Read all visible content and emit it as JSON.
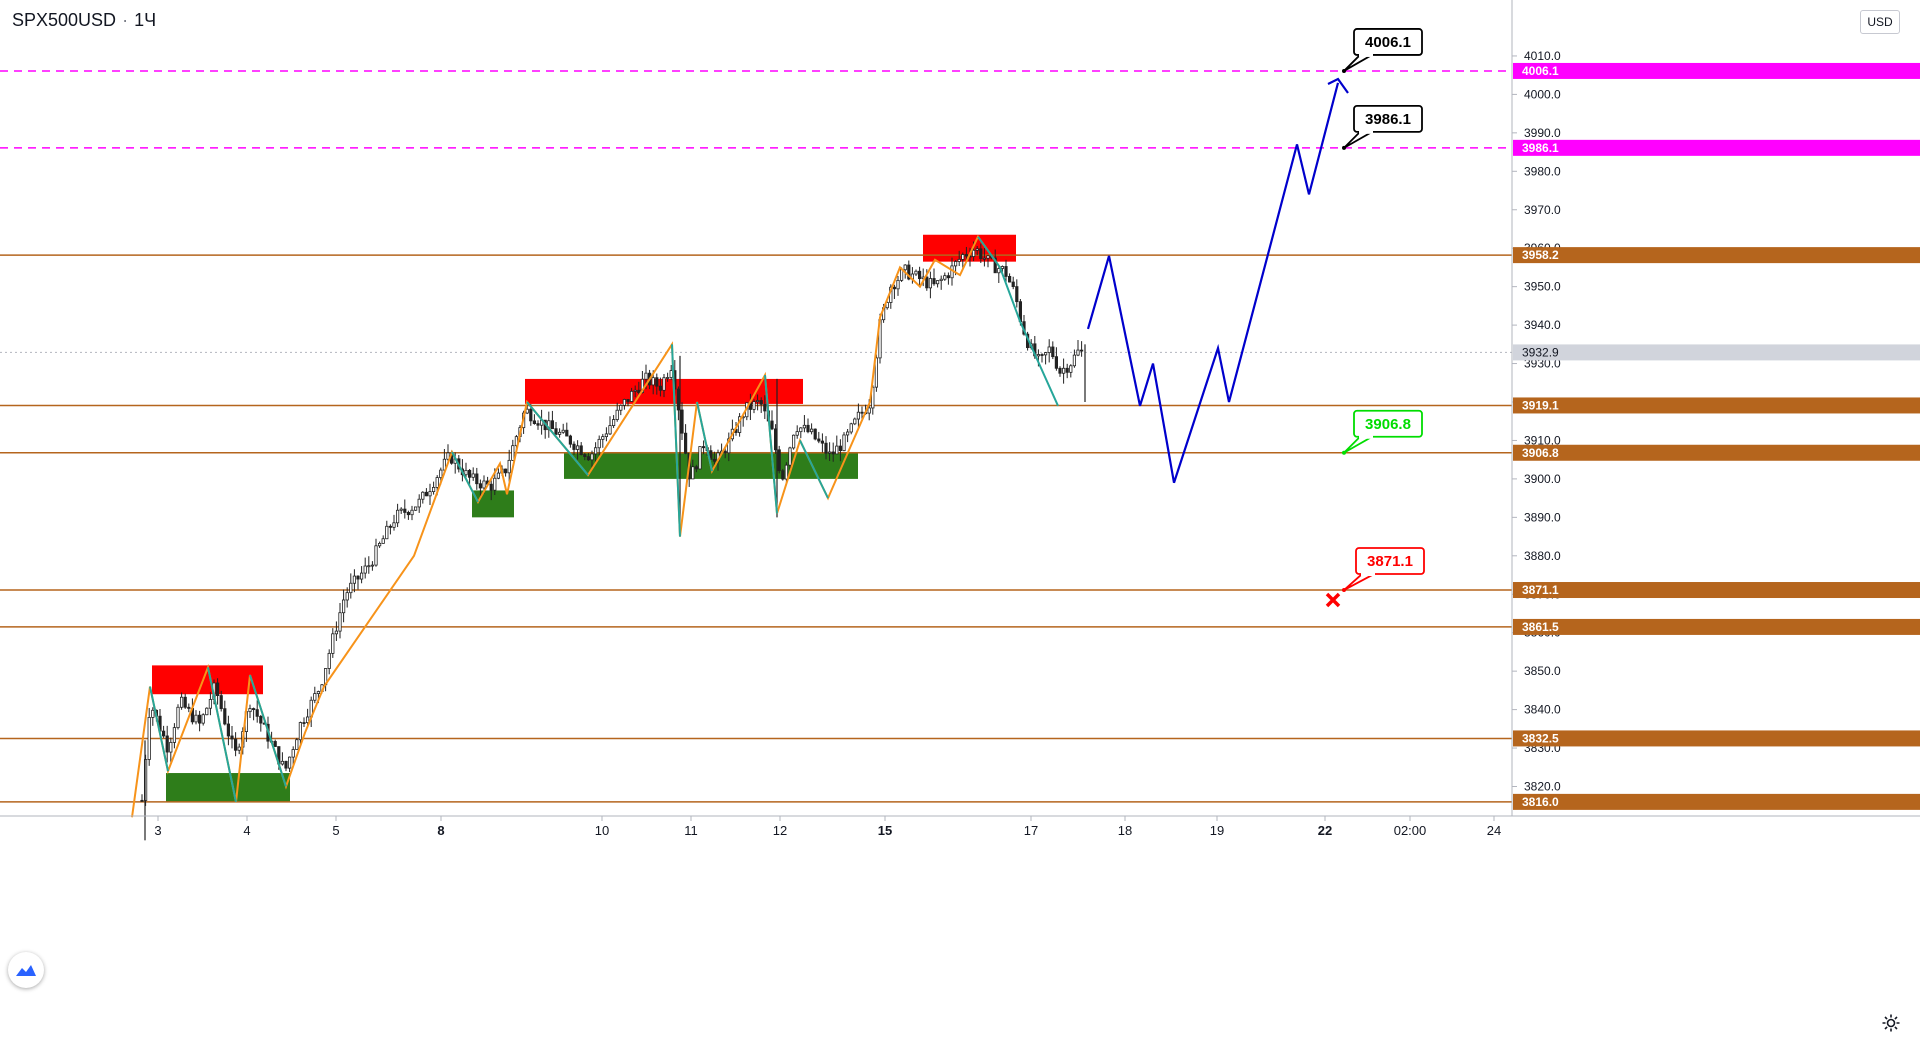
{
  "symbol": "SPX500USD",
  "interval": "1Ч",
  "currency": "USD",
  "colors": {
    "level": "#b5651d",
    "target": "#ff00ff",
    "forecast": "#0000cc",
    "zigzag_up": "#f7931a",
    "zigzag_down": "#26a69a",
    "resistance_zone": "#ff0000",
    "support_zone": "#2e7d1a",
    "candle": "#222222",
    "current_price": "#d1d4dc"
  },
  "chart_data": {
    "type": "candlestick",
    "y_axis": {
      "range": [
        3813,
        4023
      ],
      "ticks": [
        3820,
        3830,
        3840,
        3850,
        3860,
        3870,
        3880,
        3890,
        3900,
        3910,
        3920,
        3930,
        3940,
        3950,
        3960,
        3970,
        3980,
        3990,
        4000,
        4010
      ]
    },
    "x_axis": {
      "ticks": [
        "3",
        "4",
        "5",
        "8",
        "10",
        "11",
        "12",
        "15",
        "17",
        "18",
        "19",
        "22",
        "02:00",
        "24"
      ]
    },
    "current_price": 3932.9,
    "horizontal_levels": [
      {
        "value": 4006.1,
        "label": "4006.1",
        "style": "dashed",
        "color": "#ff00ff"
      },
      {
        "value": 3986.1,
        "label": "3986.1",
        "style": "dashed",
        "color": "#ff00ff"
      },
      {
        "value": 3958.2,
        "label": "3958.2",
        "style": "solid",
        "color": "#b5651d"
      },
      {
        "value": 3919.1,
        "label": "3919.1",
        "style": "solid",
        "color": "#b5651d"
      },
      {
        "value": 3906.8,
        "label": "3906.8",
        "style": "solid",
        "color": "#b5651d"
      },
      {
        "value": 3871.1,
        "label": "3871.1",
        "style": "solid",
        "color": "#b5651d"
      },
      {
        "value": 3861.5,
        "label": "3861.5",
        "style": "solid",
        "color": "#b5651d"
      },
      {
        "value": 3832.5,
        "label": "3832.5",
        "style": "solid",
        "color": "#b5651d"
      },
      {
        "value": 3816.0,
        "label": "3816.0",
        "style": "solid",
        "color": "#b5651d"
      }
    ],
    "callouts": [
      {
        "label": "4006.1",
        "price": 4006.1,
        "color": "#000000"
      },
      {
        "label": "3986.1",
        "price": 3986.1,
        "color": "#000000"
      },
      {
        "label": "3906.8",
        "price": 3906.8,
        "color": "#00dd00"
      },
      {
        "label": "3871.1",
        "price": 3871.1,
        "color": "#ff0000"
      }
    ],
    "stop_marker_price": 3868.5,
    "forecast_path": [
      3939,
      3958,
      3919,
      3930,
      3899,
      3934,
      3920,
      3987,
      3974,
      4003
    ],
    "arrow_head_price": 4004
  }
}
